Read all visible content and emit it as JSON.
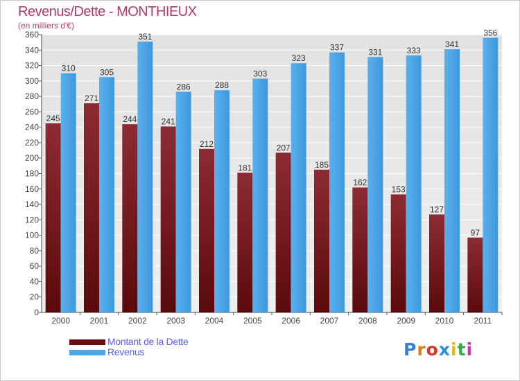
{
  "header": {
    "title": "Revenus/Dette - MONTHIEUX",
    "subtitle": "(en milliers d'€)"
  },
  "chart_data": {
    "type": "bar",
    "categories": [
      "2000",
      "2001",
      "2002",
      "2003",
      "2004",
      "2005",
      "2006",
      "2007",
      "2008",
      "2009",
      "2010",
      "2011"
    ],
    "series": [
      {
        "name": "Montant de la Dette",
        "color": "#7a1f24",
        "values": [
          245,
          271,
          244,
          241,
          212,
          181,
          207,
          185,
          162,
          153,
          127,
          97
        ]
      },
      {
        "name": "Revenus",
        "color": "#4da6e8",
        "values": [
          310,
          305,
          351,
          286,
          288,
          303,
          323,
          337,
          331,
          333,
          341,
          356
        ]
      }
    ],
    "ylim": [
      0,
      360
    ],
    "ytick_step": 20,
    "grid": true,
    "legend_position": "bottom-left",
    "background_color": "#e4e4e4"
  },
  "legend": {
    "items": [
      {
        "label": "Montant de la Dette",
        "color": "#6b0f12"
      },
      {
        "label": "Revenus",
        "color": "#4da6e8"
      }
    ]
  },
  "logo": {
    "text": "Proxiti",
    "letter_colors": [
      "#3a7fd0",
      "#e07a1f",
      "#d23a2a",
      "#2e8fd6",
      "#e0b81f",
      "#3aa84a",
      "#c23ab0"
    ]
  }
}
